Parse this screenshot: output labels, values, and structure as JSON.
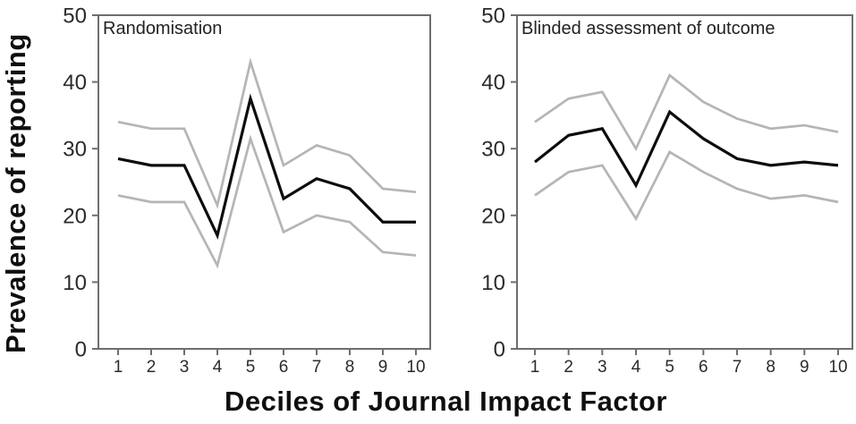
{
  "figure": {
    "y_axis_label": "Prevalence of reporting",
    "x_axis_label": "Deciles of Journal Impact Factor",
    "colors": {
      "estimate_line": "#0d0d0d",
      "ci_line": "#b5b5b5",
      "axis": "#6e6e6e",
      "tick_text": "#2b2b2b",
      "title_text": "#222222"
    }
  },
  "chart_data": [
    {
      "type": "line",
      "title": "Randomisation",
      "xlabel": "Deciles of Journal Impact Factor",
      "ylabel": "Prevalence of reporting",
      "categories": [
        "1",
        "2",
        "3",
        "4",
        "5",
        "6",
        "7",
        "8",
        "9",
        "10"
      ],
      "ylim": [
        0,
        50
      ],
      "yticks": [
        0,
        10,
        20,
        30,
        40,
        50
      ],
      "grid": false,
      "legend": false,
      "series": [
        {
          "name": "prevalence estimate",
          "role": "estimate",
          "color": "#0d0d0d",
          "values": [
            28.5,
            27.5,
            27.5,
            17,
            37.5,
            22.5,
            25.5,
            24,
            19,
            19
          ]
        },
        {
          "name": "upper confidence band",
          "role": "confidence-band",
          "color": "#b5b5b5",
          "values": [
            34,
            33,
            33,
            21.5,
            43,
            27.5,
            30.5,
            29,
            24,
            23.5
          ]
        },
        {
          "name": "lower confidence band",
          "role": "confidence-band",
          "color": "#b5b5b5",
          "values": [
            23,
            22,
            22,
            12.5,
            31.5,
            17.5,
            20,
            19,
            14.5,
            14
          ]
        }
      ]
    },
    {
      "type": "line",
      "title": "Blinded assessment of outcome",
      "xlabel": "Deciles of Journal Impact Factor",
      "ylabel": "Prevalence of reporting",
      "categories": [
        "1",
        "2",
        "3",
        "4",
        "5",
        "6",
        "7",
        "8",
        "9",
        "10"
      ],
      "ylim": [
        0,
        50
      ],
      "yticks": [
        0,
        10,
        20,
        30,
        40,
        50
      ],
      "grid": false,
      "legend": false,
      "series": [
        {
          "name": "prevalence estimate",
          "role": "estimate",
          "color": "#0d0d0d",
          "values": [
            28,
            32,
            33,
            24.5,
            35.5,
            31.5,
            28.5,
            27.5,
            28,
            27.5
          ]
        },
        {
          "name": "upper confidence band",
          "role": "confidence-band",
          "color": "#b5b5b5",
          "values": [
            34,
            37.5,
            38.5,
            30,
            41,
            37,
            34.5,
            33,
            33.5,
            32.5
          ]
        },
        {
          "name": "lower confidence band",
          "role": "confidence-band",
          "color": "#b5b5b5",
          "values": [
            23,
            26.5,
            27.5,
            19.5,
            29.5,
            26.5,
            24,
            22.5,
            23,
            22
          ]
        }
      ]
    }
  ]
}
